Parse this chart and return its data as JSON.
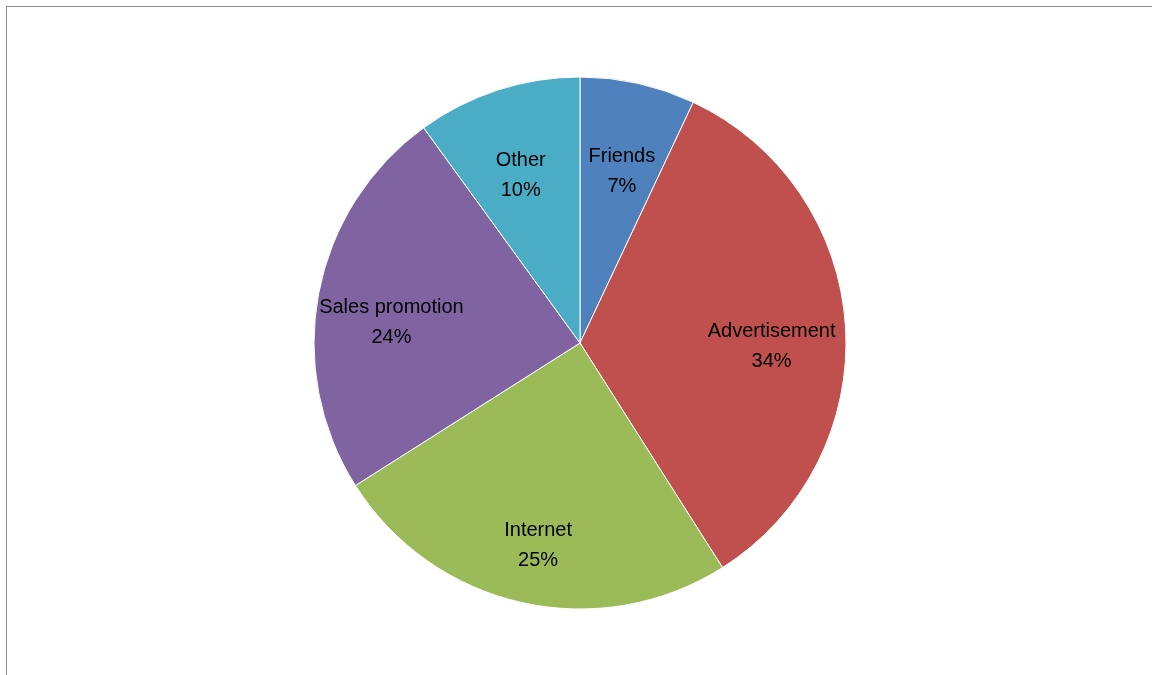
{
  "chart_data": {
    "type": "pie",
    "categories": [
      "Friends",
      "Advertisement",
      "Internet",
      "Sales promotion",
      "Other"
    ],
    "values": [
      7,
      34,
      25,
      24,
      10
    ],
    "value_labels": [
      "7%",
      "34%",
      "25%",
      "24%",
      "10%"
    ],
    "colors": [
      "#4f81bd",
      "#c0504d",
      "#9bbb59",
      "#8064a2",
      "#4bacc6"
    ]
  }
}
